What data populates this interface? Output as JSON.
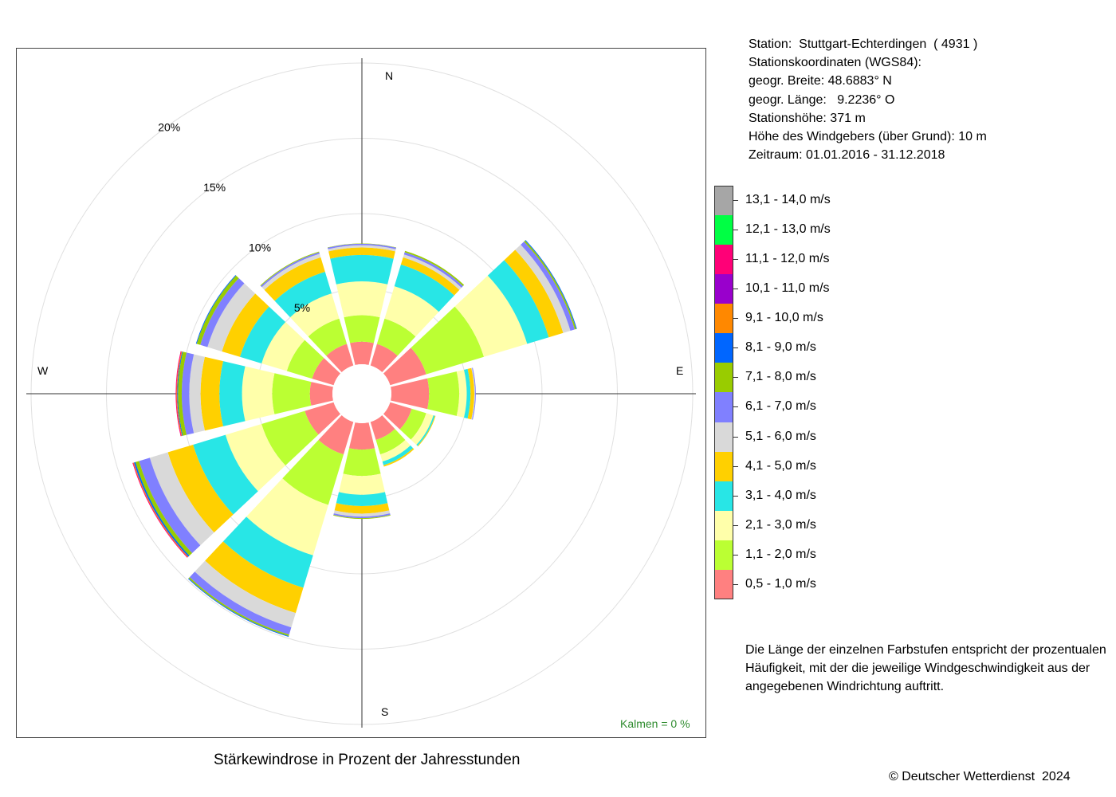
{
  "station_info": {
    "station": "Station:  Stuttgart-Echterdingen  ( 4931 )",
    "coords_header": "Stationskoordinaten (WGS84):",
    "lat": "geogr. Breite: 48.6883° N",
    "lon": "geogr. Länge:   9.2236° O",
    "elevation": "Stationshöhe: 371 m",
    "sensor_height": "Höhe des Windgebers (über Grund): 10 m",
    "period": "Zeitraum: 01.01.2016 - 31.12.2018"
  },
  "note": {
    "line1": "Die Länge der einzelnen Farbstufen entspricht der prozentualen",
    "line2": "Häufigkeit, mit der die jeweilige Windgeschwindigkeit aus der",
    "line3": "angegebenen Windrichtung auftritt."
  },
  "footer": {
    "title": "Stärkewindrose in Prozent der Jahresstunden",
    "copyright": "© Deutscher Wetterdienst  2024"
  },
  "chart_data": {
    "type": "wind-rose",
    "title": "Stärkewindrose in Prozent der Jahresstunden",
    "compass_labels": {
      "n": "N",
      "e": "E",
      "s": "S",
      "w": "W"
    },
    "ring_labels": [
      "5%",
      "10%",
      "15%",
      "20%"
    ],
    "ring_values": [
      5,
      10,
      15,
      20
    ],
    "calm_label": "Kalmen  =  0 %",
    "calm_percent": 0,
    "radial_max": 20,
    "grid": true,
    "sector_width_deg": 30,
    "directions_deg": [
      0,
      30,
      60,
      90,
      120,
      150,
      180,
      210,
      240,
      270,
      300,
      330
    ],
    "speed_classes": [
      {
        "label": "0,5 - 1,0 m/s",
        "color": "#ff8080"
      },
      {
        "label": "1,1 - 2,0 m/s",
        "color": "#bbff33"
      },
      {
        "label": "2,1 - 3,0 m/s",
        "color": "#ffffaa"
      },
      {
        "label": "3,1 - 4,0 m/s",
        "color": "#28e6e6"
      },
      {
        "label": "4,1 - 5,0 m/s",
        "color": "#ffd000"
      },
      {
        "label": "5,1 - 6,0 m/s",
        "color": "#d9d9d9"
      },
      {
        "label": "6,1 - 7,0 m/s",
        "color": "#8080ff"
      },
      {
        "label": "7,1 - 8,0 m/s",
        "color": "#99cc00"
      },
      {
        "label": "8,1 - 9,0 m/s",
        "color": "#0066ff"
      },
      {
        "label": "9,1 - 10,0 m/s",
        "color": "#ff8800"
      },
      {
        "label": "10,1 - 11,0 m/s",
        "color": "#9900cc"
      },
      {
        "label": "11,1 - 12,0 m/s",
        "color": "#ff0077"
      },
      {
        "label": "12,1 - 13,0 m/s",
        "color": "#00ff44"
      },
      {
        "label": "13,1 - 14,0 m/s",
        "color": "#a6a6a6"
      }
    ],
    "sectors": [
      {
        "dir": 0,
        "values": [
          1.5,
          1.75,
          2.25,
          1.75,
          0.5,
          0.15,
          0.1,
          0.02,
          0,
          0,
          0,
          0,
          0,
          0
        ]
      },
      {
        "dir": 30,
        "values": [
          1.5,
          1.75,
          2.25,
          1.5,
          0.5,
          0.2,
          0.15,
          0.1,
          0,
          0,
          0,
          0,
          0,
          0
        ]
      },
      {
        "dir": 60,
        "values": [
          2.5,
          4.0,
          3.0,
          1.5,
          1.0,
          0.5,
          0.3,
          0.1,
          0.05,
          0,
          0,
          0,
          0,
          0
        ]
      },
      {
        "dir": 90,
        "values": [
          2.5,
          2.0,
          0.5,
          0.25,
          0.25,
          0.05,
          0.05,
          0,
          0,
          0,
          0,
          0,
          0,
          0
        ]
      },
      {
        "dir": 120,
        "values": [
          1.5,
          1.0,
          0.5,
          0.1,
          0.05,
          0,
          0,
          0,
          0,
          0,
          0,
          0,
          0,
          0
        ]
      },
      {
        "dir": 150,
        "values": [
          1.25,
          1.0,
          0.5,
          0.25,
          0.1,
          0,
          0,
          0,
          0,
          0,
          0,
          0,
          0,
          0
        ]
      },
      {
        "dir": 180,
        "values": [
          1.75,
          1.75,
          1.25,
          0.75,
          0.5,
          0.2,
          0.1,
          0.05,
          0,
          0,
          0,
          0,
          0,
          0
        ]
      },
      {
        "dir": 210,
        "values": [
          2.25,
          3.5,
          3.5,
          2.25,
          1.75,
          1.0,
          0.5,
          0.1,
          0.05,
          0,
          0,
          0,
          0,
          0
        ]
      },
      {
        "dir": 240,
        "values": [
          2.0,
          3.0,
          2.5,
          2.25,
          1.75,
          1.25,
          0.75,
          0.25,
          0.1,
          0.05,
          0,
          0.05,
          0,
          0
        ]
      },
      {
        "dir": 270,
        "values": [
          1.5,
          2.5,
          2.0,
          1.5,
          1.25,
          0.75,
          0.5,
          0.25,
          0.05,
          0.05,
          0,
          0.05,
          0,
          0
        ]
      },
      {
        "dir": 300,
        "values": [
          1.5,
          1.75,
          1.75,
          1.5,
          1.25,
          1.0,
          0.5,
          0.25,
          0.05,
          0,
          0,
          0,
          0,
          0
        ]
      },
      {
        "dir": 330,
        "values": [
          1.5,
          1.75,
          1.75,
          1.5,
          1.0,
          0.25,
          0.1,
          0.05,
          0,
          0,
          0,
          0,
          0,
          0
        ]
      }
    ]
  }
}
